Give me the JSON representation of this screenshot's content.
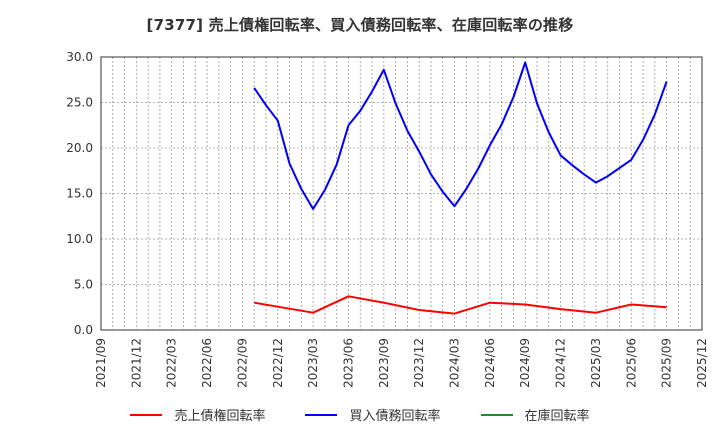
{
  "title": "[7377]  売上債権回転率、買入債務回転率、在庫回転率の推移",
  "colors": {
    "receivables": "#ff0000",
    "payables": "#0000ff",
    "inventory": "#228b22",
    "grid": "#999999",
    "axis": "#333333"
  },
  "legend": [
    {
      "label": "売上債権回転率",
      "color": "#ff0000"
    },
    {
      "label": "買入債務回転率",
      "color": "#0000ff"
    },
    {
      "label": "在庫回転率",
      "color": "#228b22"
    }
  ],
  "chart_data": {
    "type": "line",
    "title": "[7377]  売上債権回転率、買入債務回転率、在庫回転率の推移",
    "xlabel": "",
    "ylabel": "",
    "ylim": [
      0,
      30
    ],
    "yticks": [
      "0.0",
      "5.0",
      "10.0",
      "15.0",
      "20.0",
      "25.0",
      "30.0"
    ],
    "xticks": [
      "2021/09",
      "2021/12",
      "2022/03",
      "2022/06",
      "2022/09",
      "2022/12",
      "2023/03",
      "2023/06",
      "2023/09",
      "2023/12",
      "2024/03",
      "2024/06",
      "2024/09",
      "2024/12",
      "2025/03",
      "2025/06",
      "2025/09",
      "2025/12"
    ],
    "xrange": [
      "2021/09",
      "2025/12"
    ],
    "grid": true,
    "legend_position": "bottom",
    "series": [
      {
        "name": "売上債権回転率",
        "color": "#ff0000",
        "x": [
          "2022/10",
          "2023/03",
          "2023/06",
          "2023/09",
          "2023/12",
          "2024/03",
          "2024/06",
          "2024/09",
          "2024/12",
          "2025/03",
          "2025/06",
          "2025/09"
        ],
        "values": [
          3.0,
          1.9,
          3.7,
          3.0,
          2.2,
          1.8,
          3.0,
          2.8,
          2.3,
          1.9,
          2.8,
          2.5
        ]
      },
      {
        "name": "買入債務回転率",
        "color": "#0000ff",
        "x": [
          "2022/10",
          "2022/11",
          "2022/12",
          "2023/01",
          "2023/02",
          "2023/03",
          "2023/04",
          "2023/05",
          "2023/06",
          "2023/07",
          "2023/08",
          "2023/09",
          "2023/10",
          "2023/11",
          "2023/12",
          "2024/01",
          "2024/02",
          "2024/03",
          "2024/04",
          "2024/05",
          "2024/06",
          "2024/07",
          "2024/08",
          "2024/09",
          "2024/10",
          "2024/11",
          "2024/12",
          "2025/01",
          "2025/02",
          "2025/03",
          "2025/04",
          "2025/05",
          "2025/06",
          "2025/07",
          "2025/08",
          "2025/09"
        ],
        "values": [
          26.6,
          24.7,
          23.0,
          18.3,
          15.5,
          13.3,
          15.4,
          18.2,
          22.5,
          24.1,
          26.2,
          28.6,
          24.9,
          21.9,
          19.6,
          17.1,
          15.2,
          13.6,
          15.5,
          17.7,
          20.3,
          22.6,
          25.6,
          29.4,
          24.9,
          21.7,
          19.2,
          18.1,
          17.1,
          16.2,
          16.9,
          17.8,
          18.7,
          20.9,
          23.7,
          27.3
        ]
      },
      {
        "name": "在庫回転率",
        "color": "#228b22",
        "x": [],
        "values": []
      }
    ]
  }
}
